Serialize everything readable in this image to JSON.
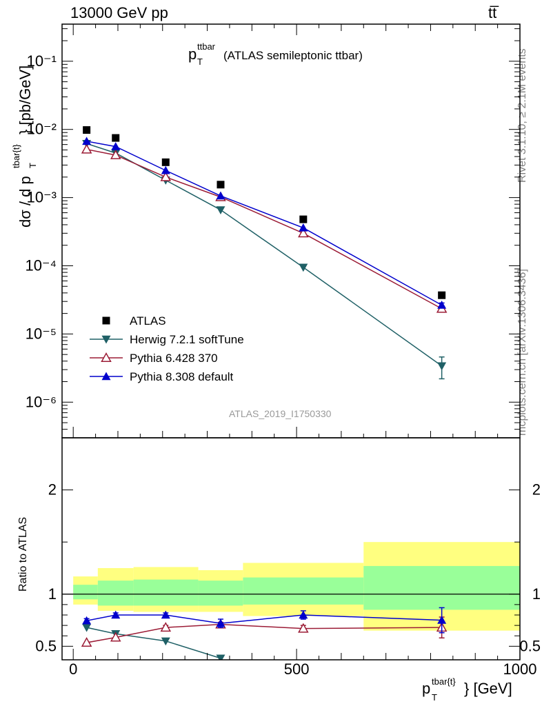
{
  "header": {
    "left": "13000 GeV pp",
    "right": "tt̅"
  },
  "side": {
    "rivet": "Rivet 3.1.10, ≥ 2.1M events",
    "mcplots": "mcplots.cern.ch [arXiv:1306.3436]"
  },
  "title": {
    "p": "p",
    "sup": "ttbar",
    "sub": "T",
    "rest": "(ATLAS semileptonic ttbar)"
  },
  "analysis_id": "ATLAS_2019_I1750330",
  "axes": {
    "ylabel_main": "dσ / d p",
    "ylabel_main_sup": "tbar{t}",
    "ylabel_main_sub": "T",
    "ylabel_main_unit": "} [pb/GeV]",
    "ylabel_ratio": "Ratio to ATLAS",
    "xlabel_p": "p",
    "xlabel_sup": "tbar{t}",
    "xlabel_sub": "T",
    "xlabel_unit": "} [GeV]"
  },
  "colors": {
    "data": "#000000",
    "herwig": "#1f6066",
    "pythia6": "#9b1b35",
    "pythia8": "#0000cc",
    "band_outer": "#ffff80",
    "band_inner": "#99ff99"
  },
  "chart_data": [
    {
      "type": "line",
      "panel": "main",
      "yscale": "log",
      "xlim": [
        -25,
        1000
      ],
      "ylim": [
        3e-07,
        0.35
      ],
      "y_ticks": [
        "10^-6",
        "10^-5",
        "10^-4",
        "10^-3",
        "10^-2",
        "10^-1"
      ],
      "legend": "center-left",
      "series": [
        {
          "name": "ATLAS",
          "marker": "square",
          "x": [
            30,
            95,
            207,
            330,
            515,
            825
          ],
          "y": [
            0.0098,
            0.0075,
            0.0033,
            0.00155,
            0.00048,
            3.7e-05
          ]
        },
        {
          "name": "Herwig 7.2.1 softTune",
          "marker": "triangle-down",
          "x": [
            30,
            95,
            207,
            330,
            515,
            825
          ],
          "y": [
            0.0062,
            0.0045,
            0.0018,
            0.00066,
            9.5e-05,
            3.4e-06
          ],
          "err": [
            0,
            0,
            0,
            0,
            0,
            1.2e-06
          ]
        },
        {
          "name": "Pythia 6.428 370",
          "marker": "triangle-up-open",
          "x": [
            30,
            95,
            207,
            330,
            515,
            825
          ],
          "y": [
            0.0051,
            0.0042,
            0.002,
            0.00102,
            0.0003,
            2.35e-05
          ],
          "err": [
            0,
            0,
            0,
            0,
            0,
            2e-06
          ]
        },
        {
          "name": "Pythia 8.308 default",
          "marker": "triangle-up",
          "x": [
            30,
            95,
            207,
            330,
            515,
            825
          ],
          "y": [
            0.0067,
            0.0056,
            0.0025,
            0.00106,
            0.00036,
            2.65e-05
          ],
          "err": [
            0,
            0,
            0,
            0,
            0,
            2e-06
          ]
        }
      ]
    },
    {
      "type": "line",
      "panel": "ratio",
      "xlim": [
        -25,
        1000
      ],
      "ylim": [
        0.37,
        2.5
      ],
      "x_ticks": [
        "0",
        "500",
        "1000"
      ],
      "y_ticks": [
        "0.5",
        "1",
        "2"
      ],
      "bands": [
        {
          "x0": 0,
          "x1": 55,
          "outer": [
            0.9,
            1.17
          ],
          "inner": [
            0.95,
            1.09
          ]
        },
        {
          "x0": 55,
          "x1": 135,
          "outer": [
            0.84,
            1.25
          ],
          "inner": [
            0.89,
            1.13
          ]
        },
        {
          "x0": 135,
          "x1": 280,
          "outer": [
            0.83,
            1.26
          ],
          "inner": [
            0.89,
            1.14
          ]
        },
        {
          "x0": 280,
          "x1": 380,
          "outer": [
            0.83,
            1.23
          ],
          "inner": [
            0.89,
            1.13
          ]
        },
        {
          "x0": 380,
          "x1": 650,
          "outer": [
            0.79,
            1.3
          ],
          "inner": [
            0.9,
            1.16
          ]
        },
        {
          "x0": 650,
          "x1": 1000,
          "outer": [
            0.65,
            1.5
          ],
          "inner": [
            0.85,
            1.27
          ]
        }
      ],
      "series": [
        {
          "name": "Herwig 7.2.1 softTune",
          "x": [
            30,
            95,
            207,
            330
          ],
          "y": [
            0.68,
            0.62,
            0.55,
            0.385
          ],
          "err": [
            0,
            0,
            0,
            0.02
          ]
        },
        {
          "name": "Pythia 6.428 370",
          "x": [
            30,
            95,
            207,
            330,
            515,
            825
          ],
          "y": [
            0.535,
            0.585,
            0.68,
            0.71,
            0.67,
            0.68
          ],
          "err": [
            0,
            0,
            0.02,
            0.02,
            0.03,
            0.1
          ]
        },
        {
          "name": "Pythia 8.308 default",
          "x": [
            30,
            95,
            207,
            330,
            515,
            825
          ],
          "y": [
            0.745,
            0.8,
            0.8,
            0.72,
            0.8,
            0.75
          ],
          "err": [
            0.02,
            0.02,
            0.02,
            0.04,
            0.04,
            0.12
          ]
        }
      ]
    }
  ]
}
